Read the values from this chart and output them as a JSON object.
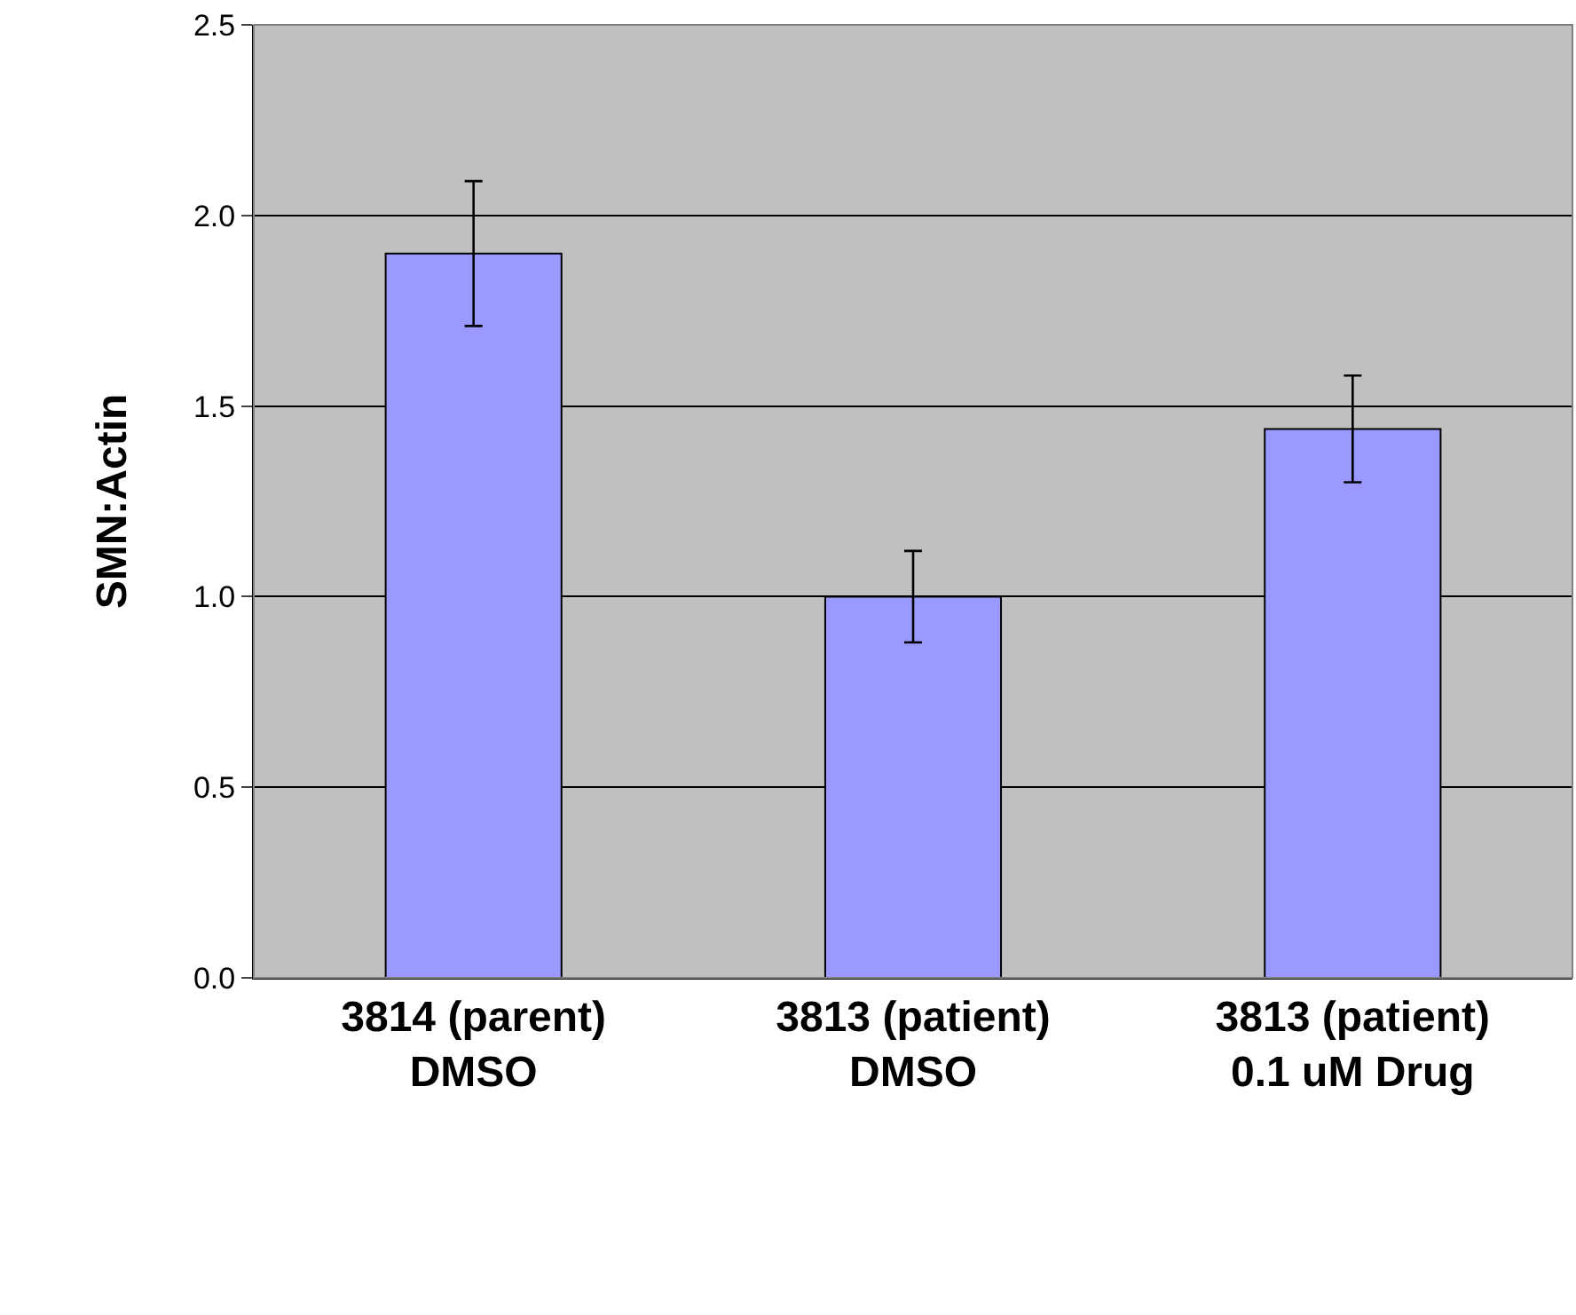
{
  "chart_data": {
    "type": "bar",
    "ylabel": "SMN:Actin",
    "categories": [
      "3814 (parent)\nDMSO",
      "3813 (patient)\nDMSO",
      "3813 (patient)\n0.1 uM Drug"
    ],
    "values": [
      1.9,
      1.0,
      1.44
    ],
    "errors": [
      [
        1.71,
        2.09
      ],
      [
        0.88,
        1.12
      ],
      [
        1.3,
        1.58
      ]
    ],
    "color": "#9999ff",
    "ylim": [
      0,
      2.5
    ],
    "yticks": [
      {
        "value": 0,
        "label": "0.0"
      },
      {
        "value": 0.5,
        "label": "0.5"
      },
      {
        "value": 1,
        "label": "1.0"
      },
      {
        "value": 1.5,
        "label": "1.5"
      },
      {
        "value": 2,
        "label": "2.0"
      },
      {
        "value": 2.5,
        "label": "2.5"
      }
    ],
    "grid": "y"
  }
}
